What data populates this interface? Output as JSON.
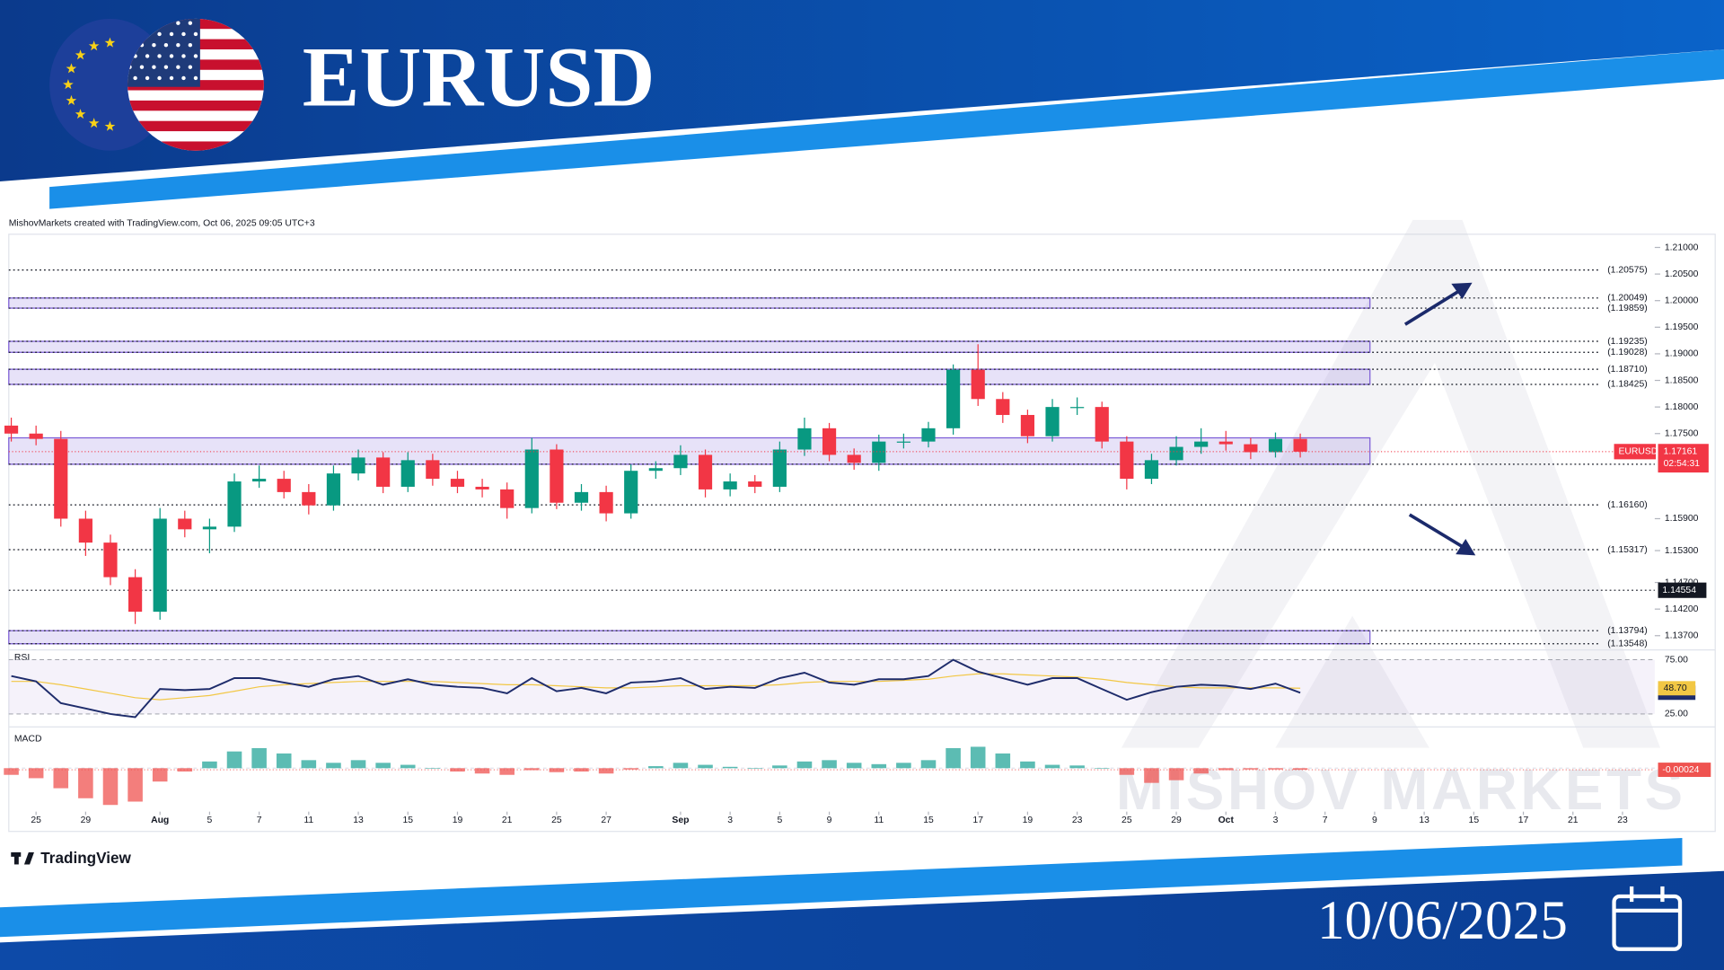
{
  "header": {
    "title": "EURUSD",
    "date": "10/06/2025"
  },
  "attribution": "MishovMarkets created with TradingView.com, Oct 06, 2025 09:05 UTC+3",
  "brand": "TradingView",
  "watermark": "MISHOV MARKETS",
  "chart_data": [
    {
      "type": "candlestick",
      "up_color": "#089981",
      "down_color": "#f23645",
      "x": [
        1,
        2,
        3,
        4,
        5,
        6,
        7,
        8,
        9,
        10,
        11,
        12,
        13,
        14,
        15,
        16,
        17,
        18,
        19,
        20,
        21,
        22,
        23,
        24,
        25,
        26,
        27,
        28,
        29,
        30,
        31,
        32,
        33,
        34,
        35,
        36,
        37,
        38,
        39,
        40,
        41,
        42,
        43,
        44,
        45,
        46,
        47,
        48,
        49,
        50,
        51,
        52,
        53
      ],
      "open": [
        1.1765,
        1.175,
        1.174,
        1.159,
        1.1545,
        1.148,
        1.1415,
        1.159,
        1.157,
        1.1575,
        1.166,
        1.1665,
        1.164,
        1.1615,
        1.1675,
        1.1705,
        1.165,
        1.17,
        1.1665,
        1.165,
        1.1645,
        1.161,
        1.172,
        1.162,
        1.164,
        1.16,
        1.168,
        1.1685,
        1.171,
        1.1645,
        1.166,
        1.165,
        1.172,
        1.176,
        1.171,
        1.1695,
        1.1735,
        1.1735,
        1.176,
        1.187,
        1.1815,
        1.1785,
        1.1745,
        1.18,
        1.18,
        1.1735,
        1.1665,
        1.17,
        1.1725,
        1.1735,
        1.173,
        1.1715,
        1.174
      ],
      "high": [
        1.178,
        1.1765,
        1.1755,
        1.1605,
        1.156,
        1.1495,
        1.161,
        1.1605,
        1.159,
        1.1675,
        1.169,
        1.168,
        1.1655,
        1.169,
        1.172,
        1.1715,
        1.1715,
        1.1712,
        1.168,
        1.1665,
        1.1658,
        1.1742,
        1.173,
        1.1655,
        1.1652,
        1.1692,
        1.1698,
        1.1728,
        1.172,
        1.1675,
        1.1672,
        1.1735,
        1.178,
        1.177,
        1.1722,
        1.1748,
        1.175,
        1.1772,
        1.188,
        1.1918,
        1.1828,
        1.1795,
        1.1815,
        1.1818,
        1.181,
        1.1745,
        1.1712,
        1.1745,
        1.176,
        1.1755,
        1.1742,
        1.1752,
        1.175
      ],
      "low": [
        1.1735,
        1.1728,
        1.1575,
        1.152,
        1.1465,
        1.1392,
        1.14,
        1.1555,
        1.1525,
        1.1565,
        1.1648,
        1.1628,
        1.1598,
        1.1605,
        1.1662,
        1.1638,
        1.164,
        1.1652,
        1.1638,
        1.163,
        1.159,
        1.16,
        1.1608,
        1.1605,
        1.1585,
        1.159,
        1.1665,
        1.1672,
        1.163,
        1.1632,
        1.1638,
        1.164,
        1.1708,
        1.1698,
        1.1682,
        1.168,
        1.1722,
        1.1724,
        1.1748,
        1.1802,
        1.177,
        1.1732,
        1.1735,
        1.1785,
        1.1722,
        1.1645,
        1.1655,
        1.169,
        1.1712,
        1.1718,
        1.1702,
        1.1705,
        1.1705
      ],
      "close": [
        1.175,
        1.174,
        1.159,
        1.1545,
        1.148,
        1.1415,
        1.159,
        1.157,
        1.1575,
        1.166,
        1.1665,
        1.164,
        1.1615,
        1.1675,
        1.1705,
        1.165,
        1.17,
        1.1665,
        1.165,
        1.1645,
        1.161,
        1.172,
        1.162,
        1.164,
        1.16,
        1.168,
        1.1685,
        1.171,
        1.1645,
        1.166,
        1.165,
        1.172,
        1.176,
        1.171,
        1.1695,
        1.1735,
        1.1735,
        1.176,
        1.187,
        1.1815,
        1.1785,
        1.1745,
        1.18,
        1.18,
        1.1735,
        1.1665,
        1.17,
        1.1725,
        1.1735,
        1.173,
        1.1715,
        1.174,
        1.1716
      ],
      "xlim": [
        0.9,
        67.3
      ],
      "ylim": [
        1.13452,
        1.21248
      ],
      "yticks": [
        {
          "value": 1.21,
          "label": "1.21000"
        },
        {
          "value": 1.205,
          "label": "1.20500"
        },
        {
          "value": 1.2,
          "label": "1.20000"
        },
        {
          "value": 1.195,
          "label": "1.19500"
        },
        {
          "value": 1.19,
          "label": "1.19000"
        },
        {
          "value": 1.185,
          "label": "1.18500"
        },
        {
          "value": 1.18,
          "label": "1.18000"
        },
        {
          "value": 1.175,
          "label": "1.17500"
        },
        {
          "value": 1.159,
          "label": "1.15900"
        },
        {
          "value": 1.153,
          "label": "1.15300"
        },
        {
          "value": 1.147,
          "label": "1.14700"
        },
        {
          "value": 1.142,
          "label": "1.14200"
        },
        {
          "value": 1.137,
          "label": "1.13700"
        }
      ],
      "xticks": [
        {
          "value": 2,
          "label": "25"
        },
        {
          "value": 4,
          "label": "29"
        },
        {
          "value": 7,
          "label": "Aug"
        },
        {
          "value": 9,
          "label": "5"
        },
        {
          "value": 11,
          "label": "7"
        },
        {
          "value": 13,
          "label": "11"
        },
        {
          "value": 15,
          "label": "13"
        },
        {
          "value": 17,
          "label": "15"
        },
        {
          "value": 19,
          "label": "19"
        },
        {
          "value": 21,
          "label": "21"
        },
        {
          "value": 23,
          "label": "25"
        },
        {
          "value": 25,
          "label": "27"
        },
        {
          "value": 28,
          "label": "Sep"
        },
        {
          "value": 30,
          "label": "3"
        },
        {
          "value": 32,
          "label": "5"
        },
        {
          "value": 34,
          "label": "9"
        },
        {
          "value": 36,
          "label": "11"
        },
        {
          "value": 38,
          "label": "15"
        },
        {
          "value": 40,
          "label": "17"
        },
        {
          "value": 42,
          "label": "19"
        },
        {
          "value": 44,
          "label": "23"
        },
        {
          "value": 46,
          "label": "25"
        },
        {
          "value": 48,
          "label": "29"
        },
        {
          "value": 50,
          "label": "Oct"
        },
        {
          "value": 52,
          "label": "3"
        },
        {
          "value": 54,
          "label": "7"
        },
        {
          "value": 56,
          "label": "9"
        },
        {
          "value": 58,
          "label": "13"
        },
        {
          "value": 60,
          "label": "15"
        },
        {
          "value": 62,
          "label": "17"
        },
        {
          "value": 64,
          "label": "21"
        },
        {
          "value": 66,
          "label": "23"
        }
      ],
      "zones": [
        {
          "low": 1.19859,
          "high": 1.20049
        },
        {
          "low": 1.19028,
          "high": 1.19235
        },
        {
          "low": 1.18425,
          "high": 1.1871
        },
        {
          "low": 1.16923,
          "high": 1.1742
        },
        {
          "low": 1.13548,
          "high": 1.13794
        }
      ],
      "zone_color": "#7b5cd6",
      "levels": [
        {
          "value": 1.20575,
          "label": "(1.20575)"
        },
        {
          "value": 1.20049,
          "label": "(1.20049)"
        },
        {
          "value": 1.19859,
          "label": "(1.19859)"
        },
        {
          "value": 1.19235,
          "label": "(1.19235)"
        },
        {
          "value": 1.19028,
          "label": "(1.19028)"
        },
        {
          "value": 1.1871,
          "label": "(1.18710)"
        },
        {
          "value": 1.18425,
          "label": "(1.18425)"
        },
        {
          "value": 1.1616,
          "label": "(1.16160)"
        },
        {
          "value": 1.15317,
          "label": "(1.15317)"
        },
        {
          "value": 1.13794,
          "label": "(1.13794)"
        },
        {
          "value": 1.13548,
          "label": "(1.13548)"
        }
      ],
      "black_levels": [
        1.16923,
        1.14554
      ],
      "last_price": {
        "name": "EURUSD",
        "value": 1.17161,
        "countdown": "02:54:31",
        "color": "#f23645"
      }
    },
    {
      "type": "line",
      "title": "RSI",
      "xlim": [
        0.9,
        67.3
      ],
      "ylim": [
        14,
        83
      ],
      "yticks": [
        {
          "value": 75,
          "label": "75.00"
        },
        {
          "value": 25,
          "label": "25.00"
        }
      ],
      "series": [
        {
          "color": "#1e2c6b",
          "values": [
            60,
            55,
            35,
            30,
            25,
            22,
            48,
            47,
            48,
            58,
            58,
            54,
            50,
            57,
            60,
            52,
            57,
            52,
            50,
            49,
            44,
            58,
            46,
            49,
            44,
            54,
            55,
            58,
            48,
            50,
            49,
            58,
            63,
            54,
            52,
            57,
            57,
            60,
            75,
            64,
            58,
            52,
            58,
            58,
            48,
            38,
            45,
            50,
            52,
            51,
            48,
            53,
            44.54
          ]
        },
        {
          "color": "#f2c744",
          "values": [
            55,
            55,
            52,
            48,
            44,
            40,
            38,
            40,
            42,
            46,
            50,
            52,
            53,
            54,
            55,
            55,
            55,
            55,
            54,
            53,
            52,
            52,
            51,
            50,
            49,
            49,
            50,
            51,
            51,
            51,
            51,
            52,
            54,
            55,
            55,
            55,
            56,
            57,
            60,
            62,
            62,
            61,
            60,
            59,
            57,
            54,
            52,
            50,
            49,
            49,
            49,
            49,
            48.7
          ],
          "value_labels": [
            null,
            null,
            null,
            null,
            null,
            null,
            null,
            null,
            null,
            null,
            null,
            null,
            null,
            null,
            null,
            null,
            null,
            null,
            null,
            null,
            null,
            null,
            null,
            null,
            null,
            null,
            null,
            null,
            null,
            null,
            null,
            null,
            null,
            null,
            null,
            null,
            null,
            null,
            null,
            null,
            null,
            null,
            null,
            null,
            null,
            null,
            null,
            null,
            null,
            null,
            null,
            null,
            "48.70"
          ]
        }
      ]
    },
    {
      "type": "bar",
      "title": "MACD",
      "xlim": [
        0.9,
        67.3
      ],
      "ylim": [
        -0.0065,
        0.006
      ],
      "up_color": "#26a69a",
      "down_color": "#ef5350",
      "values": [
        -0.001,
        -0.0015,
        -0.003,
        -0.0045,
        -0.0055,
        -0.005,
        -0.002,
        -0.0005,
        0.001,
        0.0025,
        0.003,
        0.0022,
        0.0012,
        0.0008,
        0.0012,
        0.0008,
        0.0005,
        0,
        -0.0005,
        -0.0008,
        -0.001,
        -0.0003,
        -0.0006,
        -0.0005,
        -0.0008,
        -0.0002,
        0.0003,
        0.0008,
        0.0005,
        0.0002,
        0,
        0.0004,
        0.001,
        0.0012,
        0.0008,
        0.0006,
        0.0008,
        0.0012,
        0.003,
        0.0032,
        0.0022,
        0.001,
        0.0005,
        0.0004,
        0,
        -0.001,
        -0.0022,
        -0.0018,
        -0.0008,
        -0.0003,
        -0.0002,
        -0.0002,
        -0.00024
      ]
    }
  ]
}
